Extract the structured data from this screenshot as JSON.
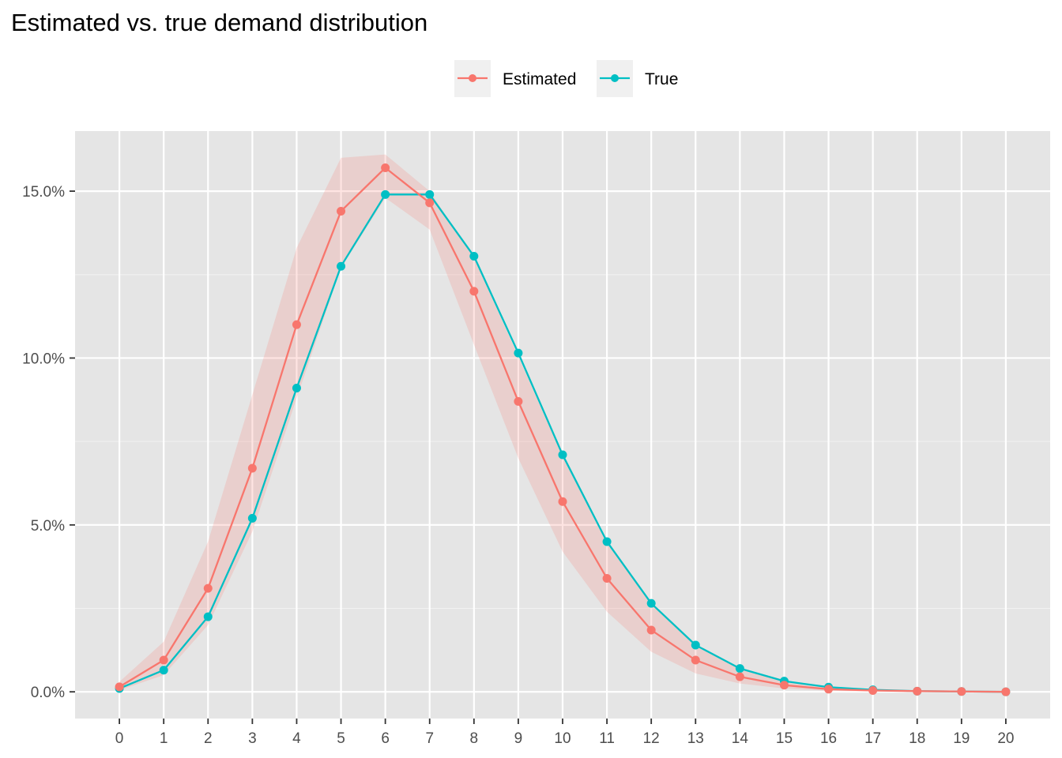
{
  "chart_data": {
    "type": "line",
    "title": "Estimated vs. true demand distribution",
    "xlabel": "",
    "ylabel": "",
    "x": [
      0,
      1,
      2,
      3,
      4,
      5,
      6,
      7,
      8,
      9,
      10,
      11,
      12,
      13,
      14,
      15,
      16,
      17,
      18,
      19,
      20
    ],
    "x_tick_labels": [
      "0",
      "1",
      "2",
      "3",
      "4",
      "5",
      "6",
      "7",
      "8",
      "9",
      "10",
      "11",
      "12",
      "13",
      "14",
      "15",
      "16",
      "17",
      "18",
      "19",
      "20"
    ],
    "y_tick_labels": [
      "0.0%",
      "5.0%",
      "10.0%",
      "15.0%"
    ],
    "y_ticks": [
      0,
      5,
      10,
      15
    ],
    "xlim": [
      -1,
      21
    ],
    "ylim": [
      -0.8,
      16.8
    ],
    "grid": true,
    "legend_position": "top",
    "series": [
      {
        "name": "Estimated",
        "color": "#F8766D",
        "values": [
          0.15,
          0.95,
          3.1,
          6.7,
          11.0,
          14.4,
          15.7,
          14.65,
          12.0,
          8.7,
          5.7,
          3.4,
          1.85,
          0.95,
          0.45,
          0.2,
          0.08,
          0.04,
          0.02,
          0.01,
          0.0
        ],
        "band_lower": [
          0.05,
          0.5,
          2.0,
          4.8,
          8.8,
          12.7,
          14.8,
          13.85,
          10.4,
          7.0,
          4.2,
          2.4,
          1.2,
          0.55,
          0.25,
          0.1,
          0.03,
          0.01,
          0.0,
          0.0,
          0.0
        ],
        "band_upper": [
          0.3,
          1.5,
          4.5,
          8.9,
          13.3,
          16.0,
          16.1,
          15.0,
          13.0,
          10.05,
          7.05,
          4.5,
          2.65,
          1.4,
          0.7,
          0.32,
          0.14,
          0.06,
          0.03,
          0.01,
          0.0
        ]
      },
      {
        "name": "True",
        "color": "#00BFC4",
        "values": [
          0.1,
          0.65,
          2.25,
          5.2,
          9.1,
          12.75,
          14.9,
          14.9,
          13.05,
          10.15,
          7.1,
          4.5,
          2.65,
          1.4,
          0.7,
          0.32,
          0.14,
          0.06,
          0.02,
          0.01,
          0.0
        ]
      }
    ]
  }
}
